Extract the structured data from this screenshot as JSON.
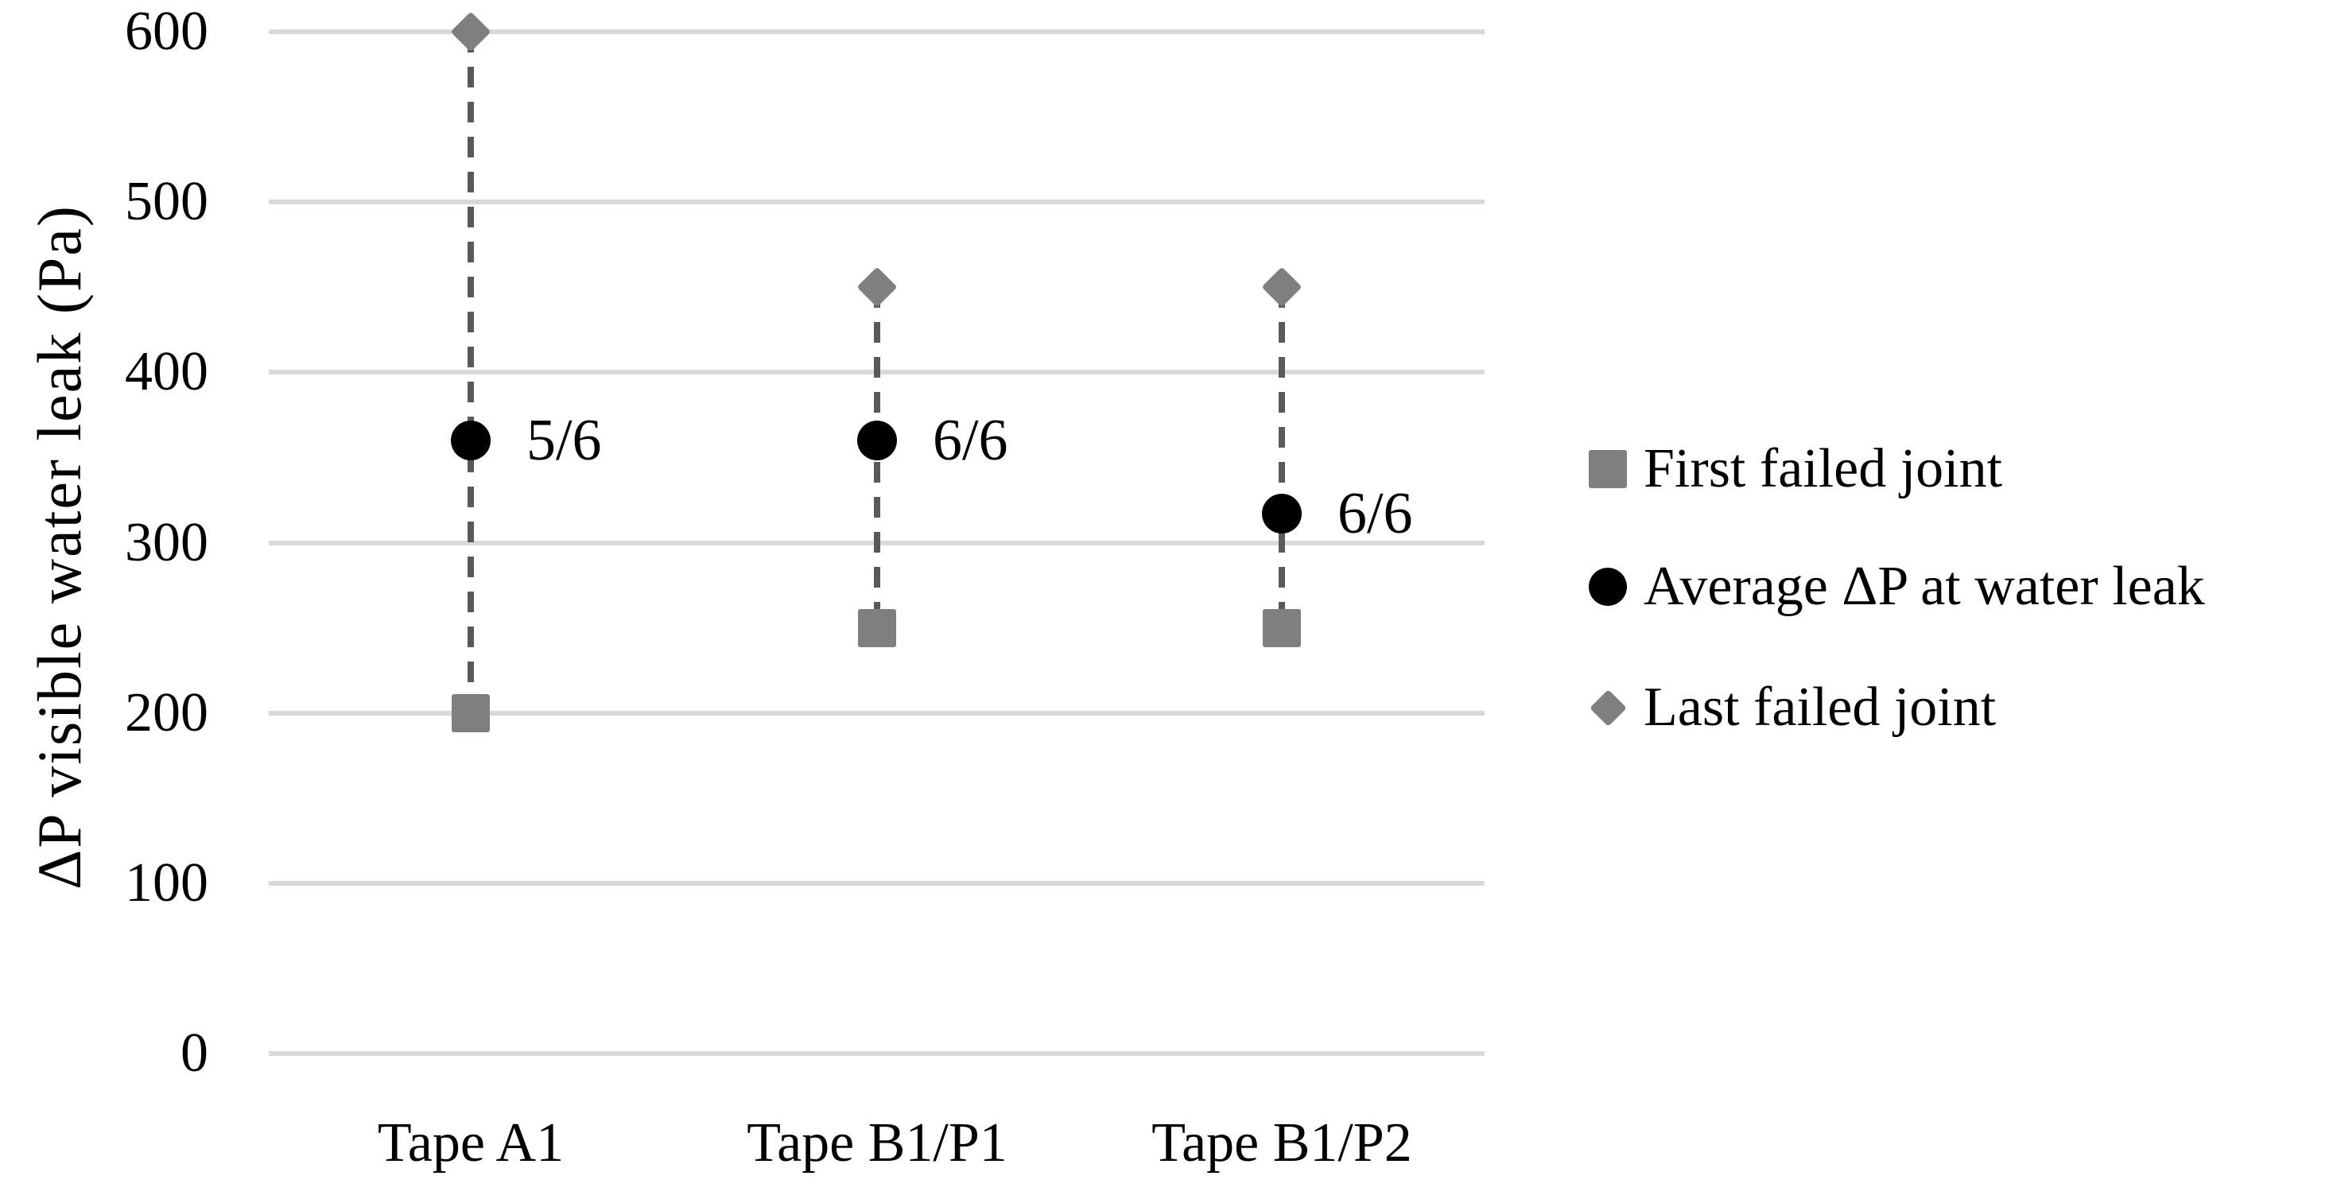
{
  "chart_data": {
    "type": "scatter",
    "title": "",
    "xlabel": "",
    "ylabel": "ΔP visible water leak (Pa)",
    "categories": [
      "Tape A1",
      "Tape B1/P1",
      "Tape B1/P2"
    ],
    "ylim": [
      0,
      600
    ],
    "y_ticks": [
      0,
      100,
      200,
      300,
      400,
      500,
      600
    ],
    "grid": "horizontal-only",
    "legend_position": "right-middle",
    "series": [
      {
        "name": "First failed joint",
        "marker": "square",
        "color": "#7F7F7F",
        "values": [
          200,
          250,
          250
        ]
      },
      {
        "name": "Average ΔP at water leak",
        "marker": "circle",
        "color": "#000000",
        "values": [
          360,
          360,
          317
        ]
      },
      {
        "name": "Last failed joint",
        "marker": "diamond",
        "color": "#7F7F7F",
        "values": [
          600,
          450,
          450
        ]
      }
    ],
    "data_labels": {
      "attached_to_series": "Average ΔP at water leak",
      "labels": [
        "5/6",
        "6/6",
        "6/6"
      ]
    },
    "connectors": {
      "style": "dashed",
      "color": "#595959",
      "spans": "from Last failed joint down to First failed joint per category"
    }
  },
  "colors": {
    "background": "#FFFFFF",
    "gridline": "#D9D9D9",
    "marker_gray": "#7F7F7F",
    "connector_dash": "#595959",
    "text": "#000000"
  }
}
